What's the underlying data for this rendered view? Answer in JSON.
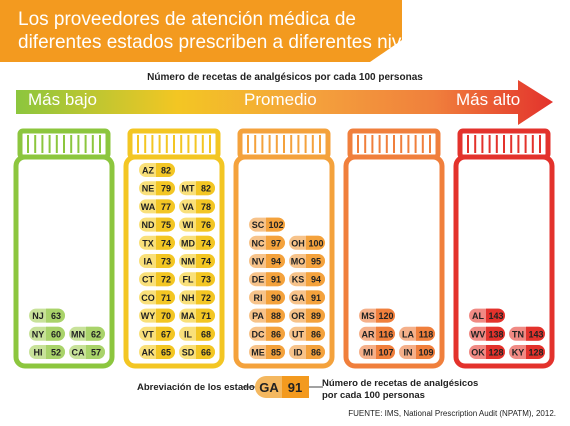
{
  "title": "Los proveedores de atención médica de diferentes estados prescriben a diferentes niveles",
  "scale": {
    "caption": "Número de recetas de analgésicos por cada 100 personas",
    "low": "Más bajo",
    "mid": "Promedio",
    "high": "Más alto"
  },
  "legend": {
    "abbr_label": "Abreviación de los estados",
    "sample_state": "GA",
    "sample_value": "91",
    "value_label": "Número de recetas de analgésicos por cada 100 personas"
  },
  "source": "FUENTE: IMS, National Prescription Audit (NPATM), 2012.",
  "colors": {
    "banner": "#f39a1f",
    "jar1": "#8cc63e",
    "jar2": "#f3c623",
    "jar3": "#f4a23c",
    "jar4": "#f07f3c",
    "jar5": "#e3322c"
  },
  "chart_data": {
    "type": "table",
    "unit": "Número de recetas de analgésicos por cada 100 personas",
    "groups": [
      {
        "rows": [
          [
            {
              "state": "NJ",
              "value": 63
            }
          ],
          [
            {
              "state": "NY",
              "value": 60
            },
            {
              "state": "MN",
              "value": 62
            }
          ],
          [
            {
              "state": "HI",
              "value": 52
            },
            {
              "state": "CA",
              "value": 57
            }
          ]
        ]
      },
      {
        "rows": [
          [
            {
              "state": "AZ",
              "value": 82
            }
          ],
          [
            {
              "state": "NE",
              "value": 79
            },
            {
              "state": "MT",
              "value": 82
            }
          ],
          [
            {
              "state": "WA",
              "value": 77
            },
            {
              "state": "VA",
              "value": 78
            }
          ],
          [
            {
              "state": "ND",
              "value": 75
            },
            {
              "state": "WI",
              "value": 76
            }
          ],
          [
            {
              "state": "TX",
              "value": 74
            },
            {
              "state": "MD",
              "value": 74
            }
          ],
          [
            {
              "state": "IA",
              "value": 73
            },
            {
              "state": "NM",
              "value": 74
            }
          ],
          [
            {
              "state": "CT",
              "value": 72
            },
            {
              "state": "FL",
              "value": 73
            }
          ],
          [
            {
              "state": "CO",
              "value": 71
            },
            {
              "state": "NH",
              "value": 72
            }
          ],
          [
            {
              "state": "WY",
              "value": 70
            },
            {
              "state": "MA",
              "value": 71
            }
          ],
          [
            {
              "state": "VT",
              "value": 67
            },
            {
              "state": "IL",
              "value": 68
            }
          ],
          [
            {
              "state": "AK",
              "value": 65
            },
            {
              "state": "SD",
              "value": 66
            }
          ]
        ]
      },
      {
        "rows": [
          [
            {
              "state": "SC",
              "value": 102
            }
          ],
          [
            {
              "state": "NC",
              "value": 97
            },
            {
              "state": "OH",
              "value": 100
            }
          ],
          [
            {
              "state": "NV",
              "value": 94
            },
            {
              "state": "MO",
              "value": 95
            }
          ],
          [
            {
              "state": "DE",
              "value": 91
            },
            {
              "state": "KS",
              "value": 94
            }
          ],
          [
            {
              "state": "RI",
              "value": 90
            },
            {
              "state": "GA",
              "value": 91
            }
          ],
          [
            {
              "state": "PA",
              "value": 88
            },
            {
              "state": "OR",
              "value": 89
            }
          ],
          [
            {
              "state": "DC",
              "value": 86
            },
            {
              "state": "UT",
              "value": 86
            }
          ],
          [
            {
              "state": "ME",
              "value": 85
            },
            {
              "state": "ID",
              "value": 86
            }
          ]
        ]
      },
      {
        "rows": [
          [
            {
              "state": "MS",
              "value": 120
            }
          ],
          [
            {
              "state": "AR",
              "value": 116
            },
            {
              "state": "LA",
              "value": 118
            }
          ],
          [
            {
              "state": "MI",
              "value": 107
            },
            {
              "state": "IN",
              "value": 109
            }
          ]
        ]
      },
      {
        "rows": [
          [
            {
              "state": "AL",
              "value": 143
            }
          ],
          [
            {
              "state": "WV",
              "value": 138
            },
            {
              "state": "TN",
              "value": 143
            }
          ],
          [
            {
              "state": "OK",
              "value": 128
            },
            {
              "state": "KY",
              "value": 128
            }
          ]
        ]
      }
    ]
  }
}
